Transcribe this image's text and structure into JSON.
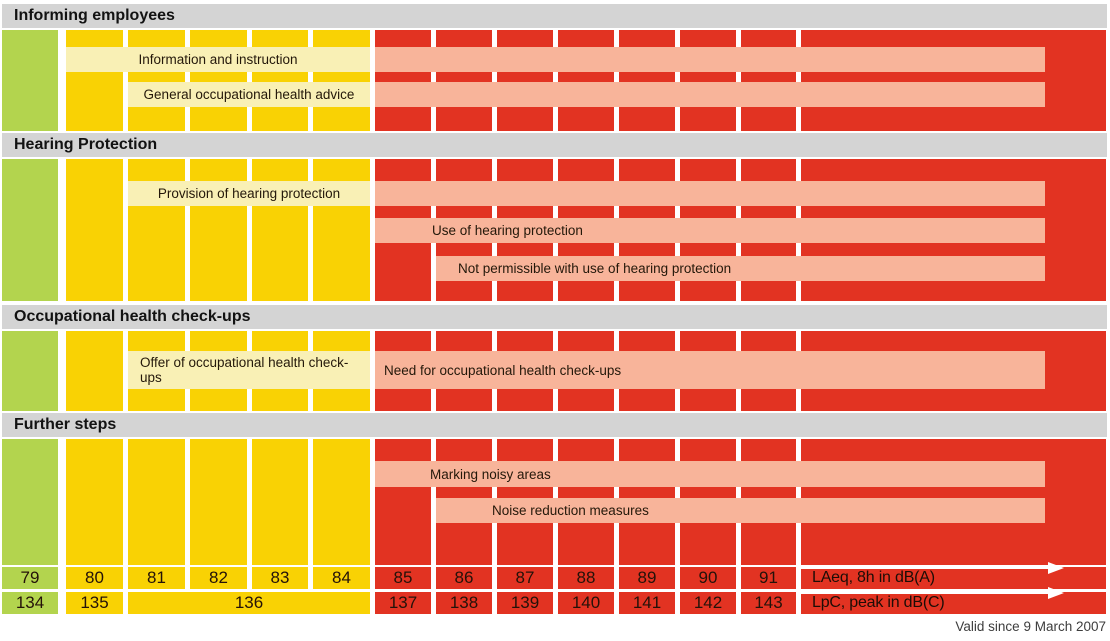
{
  "colors": {
    "green_zone": "#b3d44e",
    "yellow_zone": "#f9d204",
    "light_yellow_bar": "#f9f0b5",
    "red_zone": "#e23322",
    "salmon_bar": "#f8b49a",
    "header_gray": "#d4d4d4"
  },
  "sections": [
    {
      "title": "Informing employees",
      "bars": [
        {
          "label": "Information and instruction"
        },
        {
          "label": "General occupational health advice"
        }
      ]
    },
    {
      "title": "Hearing Protection",
      "bars": [
        {
          "label": "Provision of hearing protection"
        },
        {
          "label": "Use of hearing protection"
        },
        {
          "label": "Not permissible with use of hearing protection"
        }
      ]
    },
    {
      "title": "Occupational health check-ups",
      "bars": [
        {
          "label": "Offer of occupational health check-ups"
        },
        {
          "label": "Need for occupational health check-ups"
        }
      ]
    },
    {
      "title": "Further steps",
      "bars": [
        {
          "label": "Marking noisy areas"
        },
        {
          "label": "Noise reduction measures"
        }
      ]
    }
  ],
  "scale": {
    "laeq": {
      "values": [
        "79",
        "80",
        "81",
        "82",
        "83",
        "84",
        "85",
        "86",
        "87",
        "88",
        "89",
        "90",
        "91"
      ],
      "label": "LAeq, 8h in dB(A)"
    },
    "lpc": {
      "values": [
        "134",
        "135",
        "136",
        "137",
        "138",
        "139",
        "140",
        "141",
        "142",
        "143"
      ],
      "label": "LpC, peak in dB(C)"
    }
  },
  "footer": "Valid since 9 March 2007",
  "chart_data": {
    "type": "table",
    "title": "Noise exposure action levels and required measures",
    "axes": {
      "laeq_dba": [
        79,
        80,
        81,
        82,
        83,
        84,
        85,
        86,
        87,
        88,
        89,
        90,
        91
      ],
      "lpc_dbc": [
        {
          "laeq": 79,
          "value": 134
        },
        {
          "laeq": 80,
          "value": 135
        },
        {
          "laeq": "81-84",
          "value": 136
        },
        {
          "laeq": 85,
          "value": 137
        },
        {
          "laeq": 86,
          "value": 138
        },
        {
          "laeq": 87,
          "value": 139
        },
        {
          "laeq": 88,
          "value": 140
        },
        {
          "laeq": 89,
          "value": 141
        },
        {
          "laeq": 90,
          "value": 142
        },
        {
          "laeq": 91,
          "value": 143
        }
      ]
    },
    "zones": [
      {
        "color": "green",
        "laeq_range": [
          null,
          79
        ]
      },
      {
        "color": "yellow",
        "laeq_range": [
          80,
          84
        ]
      },
      {
        "color": "red",
        "laeq_range": [
          85,
          null
        ]
      }
    ],
    "series": [
      {
        "group": "Informing employees",
        "name": "Information and instruction",
        "laeq_from": 80,
        "laeq_to": null
      },
      {
        "group": "Informing employees",
        "name": "General occupational health advice",
        "laeq_from": 81,
        "laeq_to": null
      },
      {
        "group": "Hearing Protection",
        "name": "Provision of hearing protection",
        "laeq_from": 81,
        "laeq_to": null
      },
      {
        "group": "Hearing Protection",
        "name": "Use of hearing protection",
        "laeq_from": 85,
        "laeq_to": null
      },
      {
        "group": "Hearing Protection",
        "name": "Not permissible with use of hearing protection",
        "laeq_from": 86,
        "laeq_to": null
      },
      {
        "group": "Occupational health check-ups",
        "name": "Offer of occupational health check-ups",
        "laeq_from": 81,
        "laeq_to": 84
      },
      {
        "group": "Occupational health check-ups",
        "name": "Need for occupational health check-ups",
        "laeq_from": 85,
        "laeq_to": null
      },
      {
        "group": "Further steps",
        "name": "Marking noisy areas",
        "laeq_from": 85,
        "laeq_to": null
      },
      {
        "group": "Further steps",
        "name": "Noise reduction measures",
        "laeq_from": 86,
        "laeq_to": null
      }
    ],
    "footnote": "Valid since 9 March 2007"
  }
}
